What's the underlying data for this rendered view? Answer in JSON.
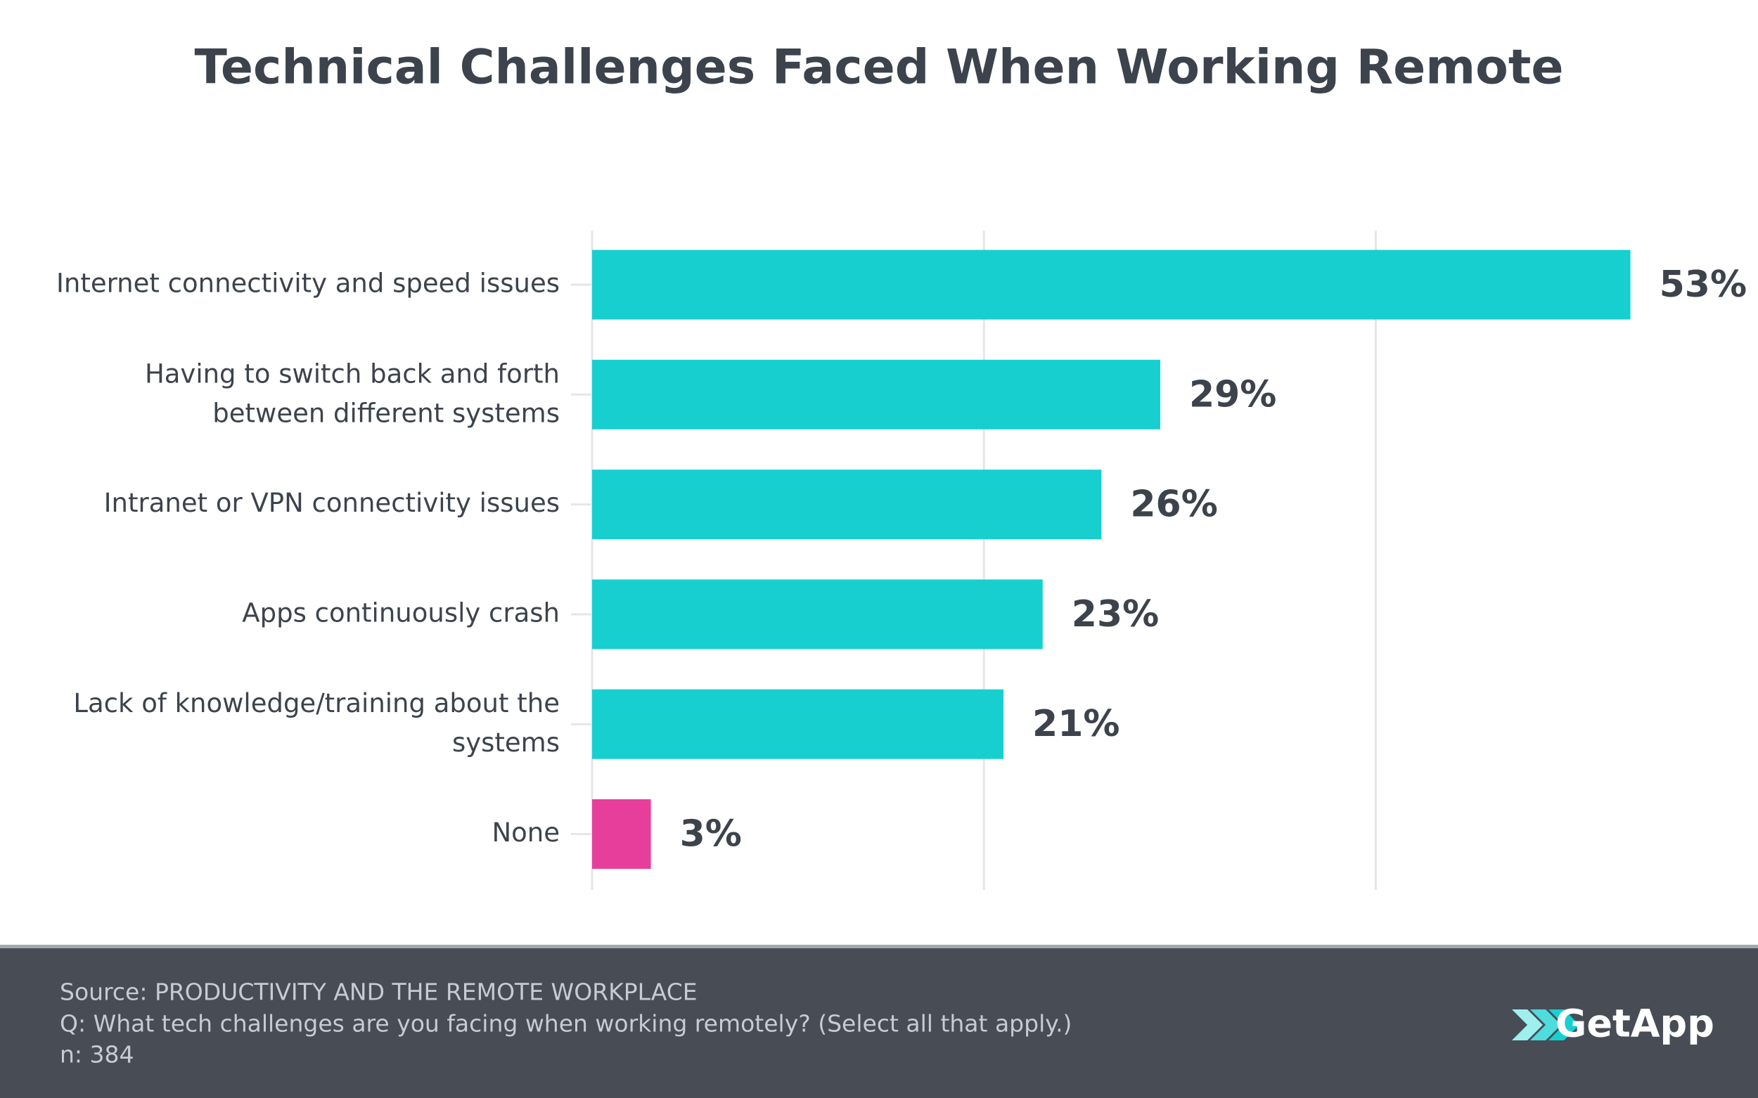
{
  "chart_data": {
    "type": "bar",
    "orientation": "horizontal",
    "title": "Technical Challenges Faced When Working Remote",
    "categories": [
      "Internet connectivity and speed issues",
      "Having to switch back and forth between different systems",
      "Intranet or VPN connectivity issues",
      "Apps continuously crash",
      "Lack of knowledge/training about the systems",
      "None"
    ],
    "values": [
      53,
      29,
      26,
      23,
      21,
      3
    ],
    "value_labels": [
      "53%",
      "29%",
      "26%",
      "23%",
      "21%",
      "3%"
    ],
    "colors": [
      "#17cfcf",
      "#17cfcf",
      "#17cfcf",
      "#17cfcf",
      "#17cfcf",
      "#e83e9b"
    ],
    "xlim": [
      0,
      60
    ],
    "xticks": [
      0,
      20,
      40
    ],
    "grid": true
  },
  "footer": {
    "source": "Source: PRODUCTIVITY AND THE REMOTE WORKPLACE",
    "question": "Q: What tech challenges are you facing when working remotely? (Select all that apply.)",
    "n": "n: 384",
    "logo": "GetApp"
  }
}
